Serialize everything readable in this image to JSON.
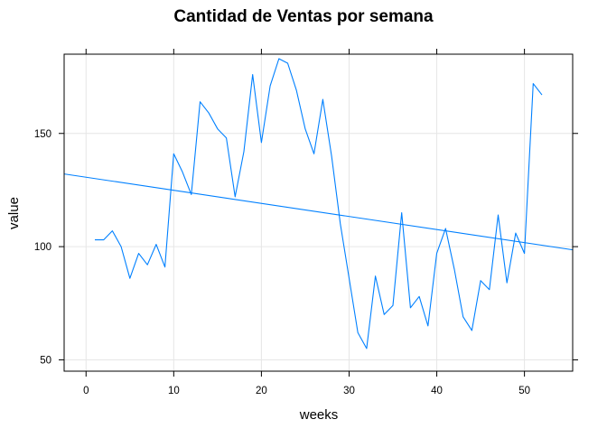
{
  "chart_data": {
    "type": "line",
    "title": "Cantidad de Ventas por semana",
    "xlabel": "weeks",
    "ylabel": "value",
    "xlim": [
      -2.5,
      55.5
    ],
    "ylim": [
      45,
      185
    ],
    "x_ticks": [
      0,
      10,
      20,
      30,
      40,
      50
    ],
    "y_ticks": [
      50,
      100,
      150
    ],
    "grid": true,
    "series": [
      {
        "color": "#0080ff",
        "x": [
          1,
          2,
          3,
          4,
          5,
          6,
          7,
          8,
          9,
          10,
          11,
          12,
          13,
          14,
          15,
          16,
          17,
          18,
          19,
          20,
          21,
          22,
          23,
          24,
          25,
          26,
          27,
          28,
          29,
          30,
          31,
          32,
          33,
          34,
          35,
          36,
          37,
          38,
          39,
          40,
          41,
          42,
          43,
          44,
          45,
          46,
          47,
          48,
          49,
          50,
          51,
          52
        ],
        "values": [
          103,
          103,
          107,
          100,
          86,
          97,
          92,
          101,
          91,
          141,
          133,
          123,
          164,
          159,
          152,
          148,
          122,
          142,
          176,
          146,
          171,
          183,
          181,
          169,
          152,
          141,
          165,
          140,
          110,
          86,
          62,
          55,
          87,
          70,
          74,
          115,
          73,
          78,
          65,
          97,
          108,
          90,
          69,
          63,
          85,
          81,
          114,
          84,
          106,
          97,
          172,
          167
        ]
      }
    ],
    "trend_line": {
      "color": "#0080ff",
      "x": [
        -2.5,
        55.5
      ],
      "values": [
        132.1,
        98.6
      ]
    }
  }
}
